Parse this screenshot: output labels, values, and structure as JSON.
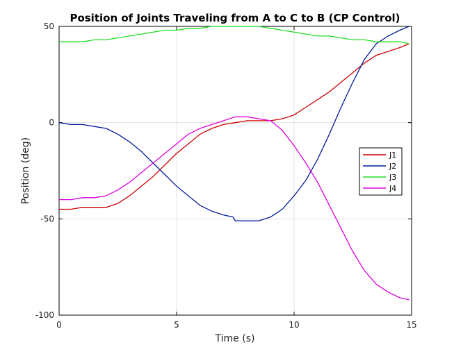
{
  "chart_data": {
    "type": "line",
    "title": "Position of Joints Traveling from A to C to B (CP Control)",
    "xlabel": "Time (s)",
    "ylabel": "Position (deg)",
    "xlim": [
      0,
      15
    ],
    "ylim": [
      -100,
      50
    ],
    "xticks": [
      0,
      5,
      10,
      15
    ],
    "yticks": [
      -100,
      -50,
      0,
      50
    ],
    "grid": true,
    "legend_position": "right",
    "series": [
      {
        "name": "J1",
        "color": "#cc0000",
        "x": [
          0,
          0.5,
          1,
          1.5,
          2,
          2.5,
          3,
          3.5,
          4,
          4.5,
          5,
          5.5,
          6,
          6.5,
          7,
          7.5,
          8,
          8.5,
          9,
          9.5,
          10,
          10.5,
          11,
          11.5,
          12,
          12.5,
          13,
          13.5,
          14,
          14.5,
          14.9
        ],
        "y": [
          -45,
          -45,
          -44,
          -44,
          -44,
          -42,
          -38,
          -33,
          -28,
          -22,
          -16,
          -11,
          -6,
          -3,
          -1,
          0,
          1,
          1,
          1,
          2,
          4,
          8,
          12,
          16,
          21,
          26,
          31,
          35,
          37,
          39,
          41
        ]
      },
      {
        "name": "J2",
        "color": "#001a99",
        "x": [
          0,
          0.5,
          1,
          1.5,
          2,
          2.5,
          3,
          3.5,
          4,
          4.5,
          5,
          5.5,
          6,
          6.5,
          7,
          7.4,
          7.5,
          8,
          8.5,
          9,
          9.5,
          10,
          10.5,
          11,
          11.5,
          12,
          12.5,
          13,
          13.5,
          14,
          14.5,
          14.9
        ],
        "y": [
          0,
          -1,
          -1,
          -2,
          -3,
          -6,
          -10,
          -15,
          -21,
          -27,
          -33,
          -38,
          -43,
          -46,
          -48,
          -49,
          -51,
          -51,
          -51,
          -49,
          -45,
          -38,
          -30,
          -19,
          -6,
          8,
          21,
          33,
          41,
          45,
          48,
          50
        ]
      },
      {
        "name": "J3",
        "color": "#22dd22",
        "x": [
          0,
          0.5,
          1,
          1.5,
          2,
          2.5,
          3,
          3.5,
          4,
          4.5,
          5,
          5.5,
          6,
          6.5,
          7,
          7.5,
          8,
          8.5,
          9,
          9.5,
          10,
          10.5,
          11,
          11.5,
          12,
          12.5,
          13,
          13.5,
          14,
          14.5,
          14.9
        ],
        "y": [
          42,
          42,
          42,
          43,
          43,
          44,
          45,
          46,
          47,
          48,
          48,
          49,
          49,
          50,
          50,
          50,
          50,
          50,
          49,
          48,
          47,
          46,
          45,
          45,
          44,
          43,
          43,
          42,
          42,
          42,
          41
        ]
      },
      {
        "name": "J4",
        "color": "#dd00dd",
        "x": [
          0,
          0.5,
          1,
          1.5,
          2,
          2.5,
          3,
          3.5,
          4,
          4.5,
          5,
          5.5,
          6,
          6.5,
          7,
          7.5,
          8,
          8.5,
          9,
          9.5,
          10,
          10.5,
          11,
          11.5,
          12,
          12.5,
          13,
          13.5,
          14,
          14.5,
          14.9
        ],
        "y": [
          -40,
          -40,
          -39,
          -39,
          -38,
          -35,
          -31,
          -26,
          -21,
          -16,
          -11,
          -6,
          -3,
          -1,
          1,
          3,
          3,
          2,
          1,
          -4,
          -12,
          -21,
          -31,
          -43,
          -55,
          -67,
          -77,
          -84,
          -88,
          -91,
          -92
        ]
      }
    ]
  }
}
